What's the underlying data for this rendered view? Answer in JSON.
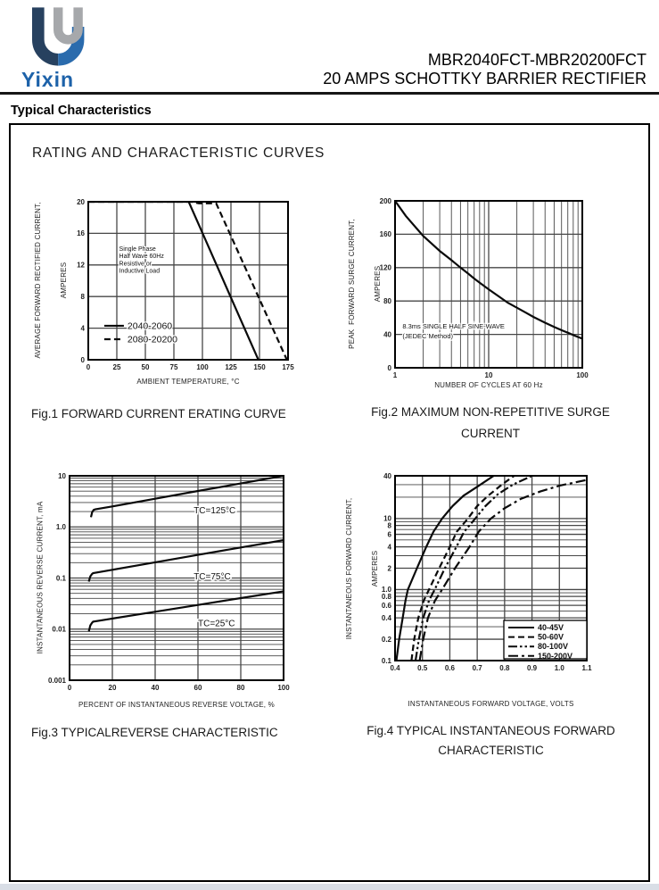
{
  "page": {
    "brand": "Yixin",
    "title_line1": "MBR2040FCT-MBR20200FCT",
    "title_line2": "20 AMPS SCHOTTKY BARRIER RECTIFIER",
    "section_heading": "Typical Characteristics",
    "box_heading": "RATING AND CHARACTERISTIC CURVES"
  },
  "colors": {
    "brand_navy": "#27415f",
    "brand_blue": "#2a6bad",
    "brand_gray": "#a6a8ab",
    "brand_text": "#1d62a9",
    "ink": "#111111",
    "grid": "#474747",
    "page_edge": "#d9dee6"
  },
  "chart_data": [
    {
      "id": "fig1",
      "type": "line",
      "title": "Fig.1 FORWARD CURRENT ERATING CURVE",
      "xlabel": "AMBIENT TEMPERATURE, °C",
      "ylabel1": "AVERAGE FORWARD RECTIFIED CURRENT,",
      "ylabel2": "AMPERES",
      "x": {
        "scale": "linear",
        "min": 0,
        "max": 175,
        "ticks": [
          [
            0,
            "0"
          ],
          [
            25,
            "25"
          ],
          [
            50,
            "50"
          ],
          [
            75,
            "75"
          ],
          [
            100,
            "100"
          ],
          [
            125,
            "125"
          ],
          [
            150,
            "150"
          ],
          [
            175,
            "175"
          ]
        ]
      },
      "y": {
        "scale": "linear",
        "min": 0,
        "max": 20,
        "ticks": [
          [
            0,
            "0"
          ],
          [
            4,
            "4"
          ],
          [
            8,
            "8"
          ],
          [
            12,
            "12"
          ],
          [
            16,
            "16"
          ],
          [
            20,
            "20"
          ]
        ]
      },
      "series": [
        {
          "name": "2040-2060",
          "style": "solid",
          "points": [
            [
              0,
              20
            ],
            [
              88,
              20
            ],
            [
              149,
              0
            ]
          ]
        },
        {
          "name": "2080-20200",
          "style": "dashed",
          "points": [
            [
              0,
              20
            ],
            [
              90,
              20
            ],
            [
              97,
              19.8
            ],
            [
              112,
              19.8
            ],
            [
              174,
              0
            ]
          ]
        }
      ],
      "annotations": [
        {
          "x": 27,
          "y": 13.8,
          "size": 7,
          "lh": 8.2,
          "lines": [
            "Single Phase",
            "Half Wave 60Hz",
            "Resistive or",
            "Inductive Load"
          ]
        }
      ]
    },
    {
      "id": "fig2",
      "type": "line",
      "title": "Fig.2 MAXIMUM NON-REPETITIVE SURGE",
      "title2": "CURRENT",
      "xlabel": "NUMBER OF CYCLES AT 60 Hz",
      "ylabel1": "PEAK  FORWARD SURGE CURRENT,",
      "ylabel2": "AMPERES",
      "x": {
        "scale": "log",
        "min": 1,
        "max": 100,
        "ticks": [
          [
            1,
            "1"
          ],
          [
            10,
            "10"
          ],
          [
            100,
            "100"
          ]
        ]
      },
      "y": {
        "scale": "linear",
        "min": 0,
        "max": 200,
        "ticks": [
          [
            0,
            "0"
          ],
          [
            40,
            "40"
          ],
          [
            80,
            "80"
          ],
          [
            120,
            "120"
          ],
          [
            160,
            "160"
          ],
          [
            200,
            "200"
          ]
        ]
      },
      "series": [
        {
          "name": "surge current",
          "style": "solid",
          "points": [
            [
              1,
              200
            ],
            [
              1.3,
              182
            ],
            [
              1.7,
              167
            ],
            [
              2,
              158
            ],
            [
              2.5,
              148
            ],
            [
              3,
              140
            ],
            [
              4,
              129
            ],
            [
              5,
              120
            ],
            [
              6,
              113
            ],
            [
              7,
              107
            ],
            [
              8,
              102
            ],
            [
              10,
              94
            ],
            [
              13,
              85
            ],
            [
              16,
              78
            ],
            [
              20,
              72
            ],
            [
              25,
              66
            ],
            [
              30,
              61
            ],
            [
              40,
              54
            ],
            [
              50,
              49
            ],
            [
              60,
              45
            ],
            [
              70,
              42
            ],
            [
              85,
              38
            ],
            [
              100,
              35
            ]
          ]
        }
      ],
      "annotations": [
        {
          "x": 1.2,
          "y": 47,
          "size": 7.5,
          "lh": 11,
          "lines": [
            "8.3ms SINGLE HALF SINE-WAVE",
            "(JEDEC Method)"
          ]
        }
      ]
    },
    {
      "id": "fig3",
      "type": "line",
      "title": "Fig.3 TYPICALREVERSE CHARACTERISTIC",
      "xlabel": "PERCENT OF INSTANTANEOUS REVERSE VOLTAGE, %",
      "ylabel1": "INSTANTANEOUS REVERSE CURRENT, mA",
      "x": {
        "scale": "linear",
        "min": 0,
        "max": 100,
        "ticks": [
          [
            0,
            "0"
          ],
          [
            20,
            "20"
          ],
          [
            40,
            "40"
          ],
          [
            60,
            "60"
          ],
          [
            80,
            "80"
          ],
          [
            100,
            "100"
          ]
        ]
      },
      "y": {
        "scale": "log",
        "min": 0.001,
        "max": 10,
        "ticks": [
          [
            0.001,
            "0.001"
          ],
          [
            0.01,
            "0.01"
          ],
          [
            0.1,
            "0.1"
          ],
          [
            1,
            "1.0"
          ],
          [
            10,
            "10"
          ]
        ]
      },
      "series": [
        {
          "name": "TC=125°C",
          "style": "solid",
          "label_at": [
            58,
            2.05
          ],
          "points": [
            [
              10,
              1.55
            ],
            [
              10.6,
              1.95
            ],
            [
              11.3,
              2.15
            ],
            [
              12,
              2.2
            ],
            [
              20,
              2.52
            ],
            [
              40,
              3.56
            ],
            [
              60,
              5.05
            ],
            [
              80,
              7.08
            ],
            [
              100,
              10
            ]
          ]
        },
        {
          "name": "TC=75°C",
          "style": "solid",
          "label_at": [
            58,
            0.105
          ],
          "points": [
            [
              9,
              0.085
            ],
            [
              9.7,
              0.108
            ],
            [
              10.5,
              0.12
            ],
            [
              11,
              0.125
            ],
            [
              20,
              0.145
            ],
            [
              40,
              0.203
            ],
            [
              60,
              0.283
            ],
            [
              80,
              0.395
            ],
            [
              100,
              0.55
            ]
          ]
        },
        {
          "name": "TC=25°C",
          "style": "solid",
          "label_at": [
            60,
            0.0126
          ],
          "points": [
            [
              9,
              0.009
            ],
            [
              9.7,
              0.0118
            ],
            [
              10.5,
              0.0133
            ],
            [
              11,
              0.014
            ],
            [
              20,
              0.0161
            ],
            [
              40,
              0.0219
            ],
            [
              60,
              0.0297
            ],
            [
              80,
              0.0404
            ],
            [
              100,
              0.055
            ]
          ]
        }
      ]
    },
    {
      "id": "fig4",
      "type": "line",
      "title": "Fig.4 TYPICAL INSTANTANEOUS FORWARD",
      "title2": "CHARACTERISTIC",
      "xlabel": "INSTANTANEOUS FORWARD VOLTAGE, VOLTS",
      "ylabel1": "INSTANTANEOUS FORWARD CURRENT,",
      "ylabel2": "AMPERES",
      "x": {
        "scale": "linear",
        "min": 0.4,
        "max": 1.1,
        "ticks": [
          [
            0.4,
            "0.4"
          ],
          [
            0.5,
            "0.5"
          ],
          [
            0.6,
            "0.6"
          ],
          [
            0.7,
            "0.7"
          ],
          [
            0.8,
            "0.8"
          ],
          [
            0.9,
            "0.9"
          ],
          [
            1.0,
            "1.0"
          ],
          [
            1.1,
            "1.1"
          ]
        ]
      },
      "y": {
        "scale": "log",
        "min": 0.1,
        "max": 40,
        "ticks": [
          [
            0.1,
            "0.1"
          ],
          [
            0.2,
            "0.2"
          ],
          [
            0.4,
            "0.4"
          ],
          [
            0.6,
            "0.6"
          ],
          [
            0.8,
            "0.8"
          ],
          [
            1,
            "1.0"
          ],
          [
            2,
            "2"
          ],
          [
            4,
            "4"
          ],
          [
            6,
            "6"
          ],
          [
            8,
            "8"
          ],
          [
            10,
            "10"
          ],
          [
            40,
            "40"
          ]
        ]
      },
      "series": [
        {
          "name": "40-45V",
          "style": "solid",
          "points": [
            [
              0.405,
              0.1
            ],
            [
              0.415,
              0.2
            ],
            [
              0.428,
              0.4
            ],
            [
              0.438,
              0.7
            ],
            [
              0.447,
              1.0
            ],
            [
              0.48,
              2
            ],
            [
              0.514,
              4
            ],
            [
              0.54,
              6.5
            ],
            [
              0.572,
              10
            ],
            [
              0.61,
              15
            ],
            [
              0.65,
              21
            ],
            [
              0.7,
              28
            ],
            [
              0.76,
              40
            ],
            [
              0.8,
              55
            ]
          ]
        },
        {
          "name": "50-60V",
          "style": "dashed",
          "points": [
            [
              0.46,
              0.1
            ],
            [
              0.47,
              0.2
            ],
            [
              0.485,
              0.4
            ],
            [
              0.505,
              0.7
            ],
            [
              0.524,
              1.0
            ],
            [
              0.561,
              2
            ],
            [
              0.6,
              4
            ],
            [
              0.625,
              6.5
            ],
            [
              0.666,
              10
            ],
            [
              0.7,
              15
            ],
            [
              0.74,
              21
            ],
            [
              0.79,
              30
            ],
            [
              0.835,
              40
            ],
            [
              0.87,
              52
            ]
          ]
        },
        {
          "name": "80-100V",
          "style": "dashdotdot",
          "points": [
            [
              0.475,
              0.1
            ],
            [
              0.487,
              0.2
            ],
            [
              0.503,
              0.4
            ],
            [
              0.524,
              0.7
            ],
            [
              0.545,
              1.0
            ],
            [
              0.582,
              2
            ],
            [
              0.624,
              4
            ],
            [
              0.652,
              6.5
            ],
            [
              0.693,
              10
            ],
            [
              0.73,
              15
            ],
            [
              0.775,
              22
            ],
            [
              0.83,
              30
            ],
            [
              0.9,
              40
            ],
            [
              0.93,
              46
            ]
          ]
        },
        {
          "name": "150-200V",
          "style": "dashdot",
          "points": [
            [
              0.49,
              0.1
            ],
            [
              0.503,
              0.2
            ],
            [
              0.52,
              0.4
            ],
            [
              0.546,
              0.7
            ],
            [
              0.572,
              1.0
            ],
            [
              0.619,
              2
            ],
            [
              0.672,
              4
            ],
            [
              0.705,
              6.5
            ],
            [
              0.75,
              10
            ],
            [
              0.8,
              14
            ],
            [
              0.86,
              19
            ],
            [
              0.93,
              24
            ],
            [
              1.0,
              29
            ],
            [
              1.1,
              35
            ]
          ]
        }
      ]
    }
  ]
}
